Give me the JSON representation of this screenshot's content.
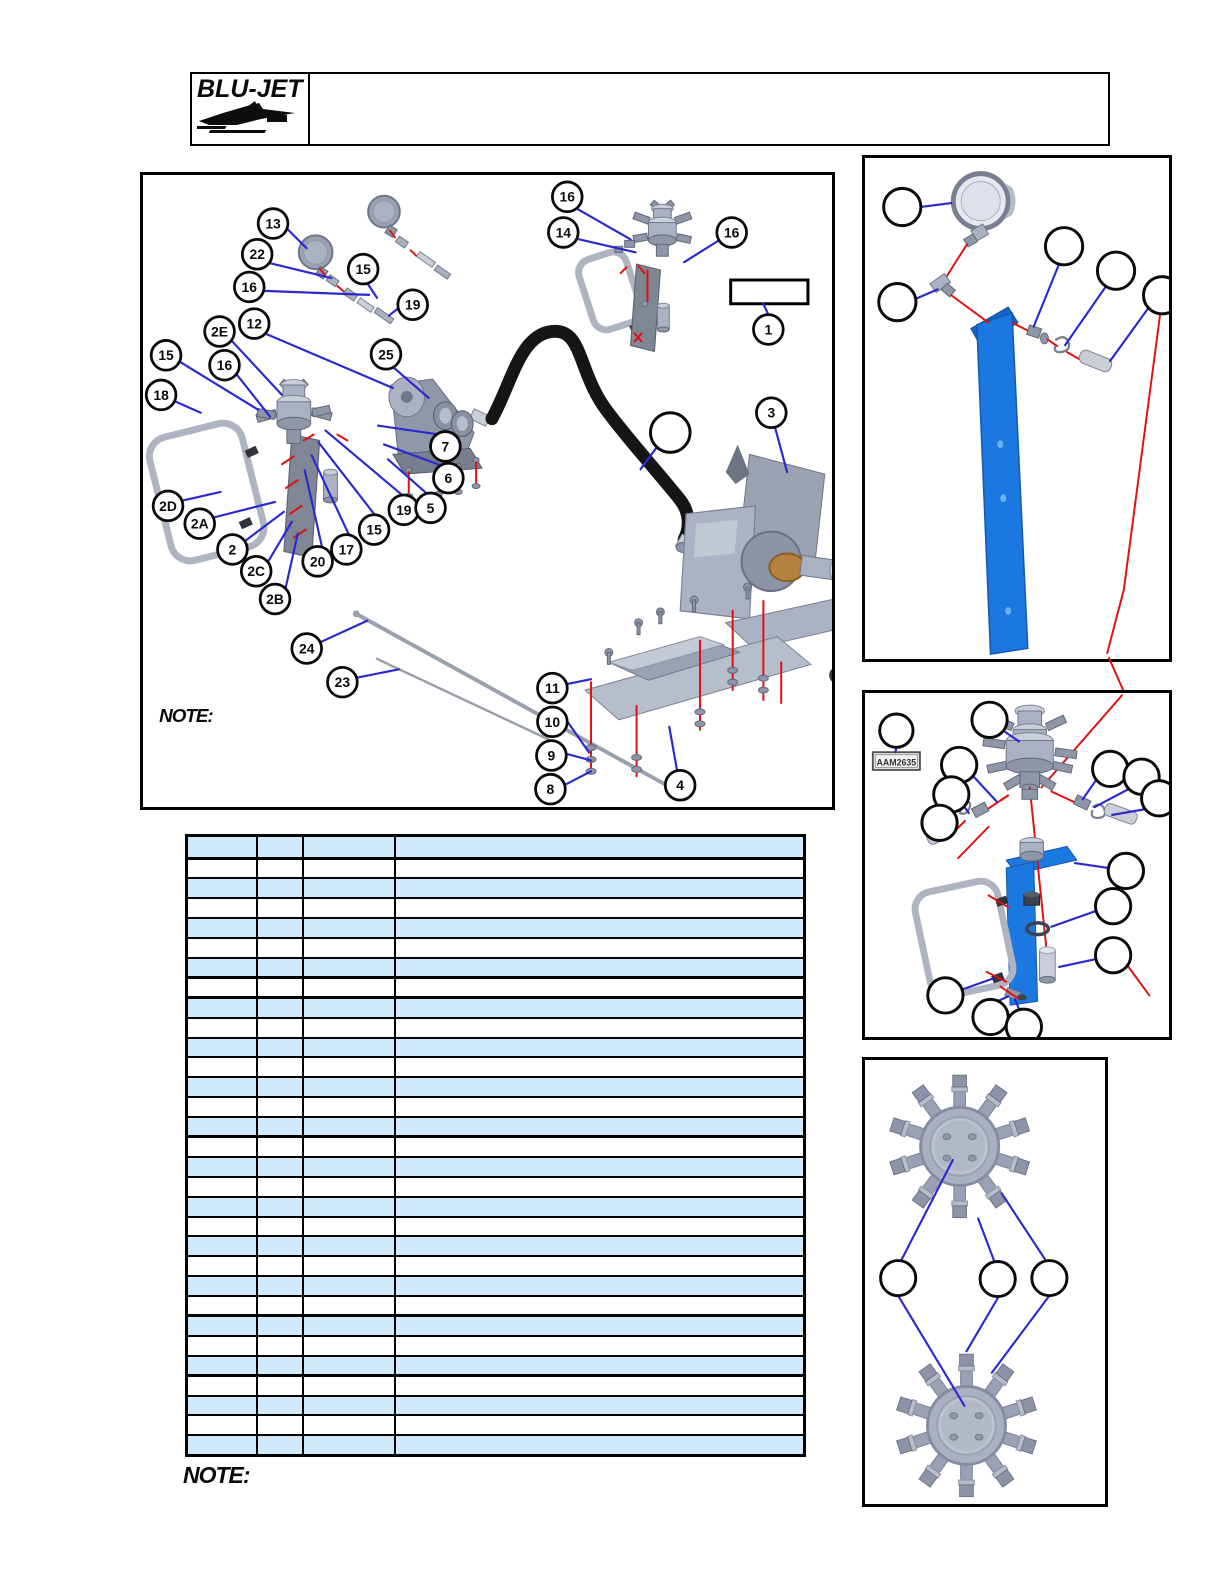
{
  "header": {
    "logo_text": "BLU-JET",
    "title_text": ""
  },
  "notes": {
    "diagram_note": "NOTE:",
    "footer_note": "NOTE:"
  },
  "main_diagram": {
    "callouts": [
      "13",
      "22",
      "16",
      "15",
      "19",
      "16",
      "14",
      "16",
      "1",
      "2E",
      "12",
      "25",
      "15",
      "16",
      "18",
      "2D",
      "2A",
      "2",
      "2C",
      "2B",
      "20",
      "17",
      "15",
      "19",
      "5",
      "6",
      "7",
      "3",
      "24",
      "23",
      "11",
      "10",
      "9",
      "8",
      "4"
    ],
    "unlabeled_callout": "",
    "part_label_box": ""
  },
  "right_panels": {
    "top": {
      "note": ""
    },
    "middle": {
      "tag_label": "AAM2635"
    },
    "bottom": {
      "note": ""
    }
  },
  "table": {
    "headers": [
      "",
      "",
      "",
      ""
    ],
    "row_count": 30,
    "thick_separators_after_rows": [
      6,
      7,
      14,
      23,
      26
    ],
    "zebra_color": "#cfe9fb"
  },
  "colors": {
    "leader_blue": "#2a2ad0",
    "marker_red": "#e01111",
    "part_blue": "#1b78e0",
    "table_zebra": "#cfe9fb",
    "table_border": "#000000"
  }
}
